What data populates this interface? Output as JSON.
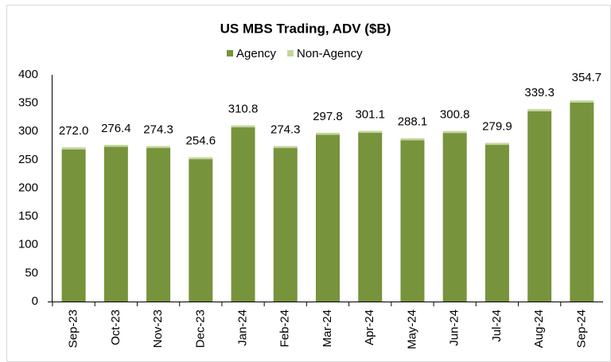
{
  "chart_data": {
    "type": "stacked_bar",
    "title": "US MBS Trading, ADV ($B)",
    "categories": [
      "Sep-23",
      "Oct-23",
      "Nov-23",
      "Dec-23",
      "Jan-24",
      "Feb-24",
      "Mar-24",
      "Apr-24",
      "May-24",
      "Jun-24",
      "Jul-24",
      "Aug-24",
      "Sep-24"
    ],
    "series": [
      {
        "name": "Agency",
        "color": "#77933c",
        "values": [
          268.5,
          272.9,
          270.8,
          251.1,
          307.3,
          270.8,
          294.3,
          297.6,
          284.6,
          297.3,
          276.4,
          335.8,
          351.2
        ]
      },
      {
        "name": "Non-Agency",
        "color": "#c3d69b",
        "values": [
          3.5,
          3.5,
          3.5,
          3.5,
          3.5,
          3.5,
          3.5,
          3.5,
          3.5,
          3.5,
          3.5,
          3.5,
          3.5
        ]
      }
    ],
    "totals": [
      272.0,
      276.4,
      274.3,
      254.6,
      310.8,
      274.3,
      297.8,
      301.1,
      288.1,
      300.8,
      279.9,
      339.3,
      354.7
    ],
    "total_labels": [
      "272.0",
      "276.4",
      "274.3",
      "254.6",
      "310.8",
      "274.3",
      "297.8",
      "301.1",
      "288.1",
      "300.8",
      "279.9",
      "339.3",
      "354.7"
    ],
    "ylim": [
      0,
      400
    ],
    "yticks": [
      0,
      50,
      100,
      150,
      200,
      250,
      300,
      350,
      400
    ],
    "grid": false,
    "legend": "top"
  }
}
